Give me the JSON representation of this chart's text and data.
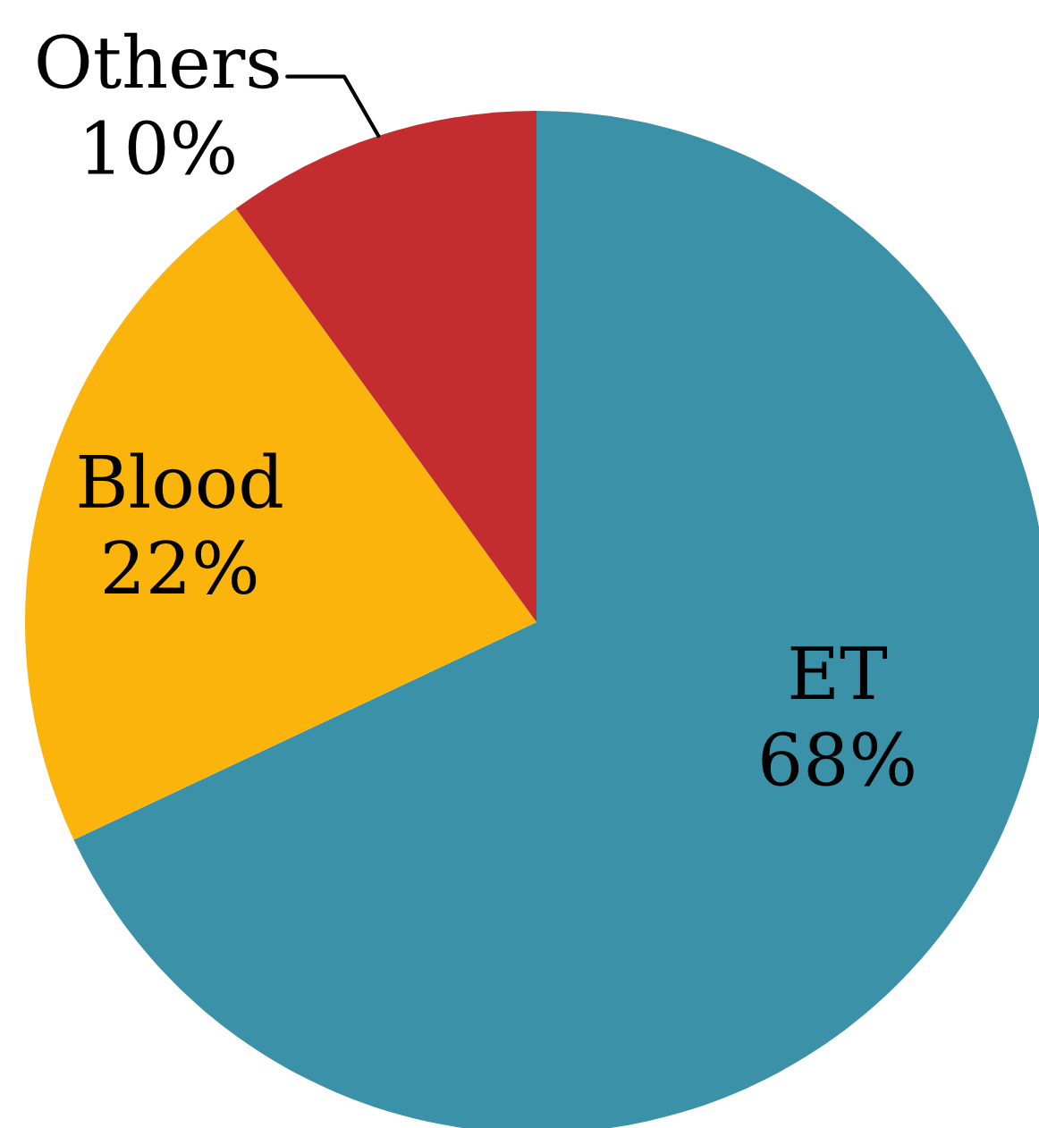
{
  "chart_data": {
    "type": "pie",
    "categories": [
      "ET",
      "Blood",
      "Others"
    ],
    "values": [
      68,
      22,
      10
    ],
    "value_labels": [
      "68%",
      "22%",
      "10%"
    ],
    "colors": [
      "#3a91a8",
      "#fbb40c",
      "#c32d2f"
    ]
  }
}
